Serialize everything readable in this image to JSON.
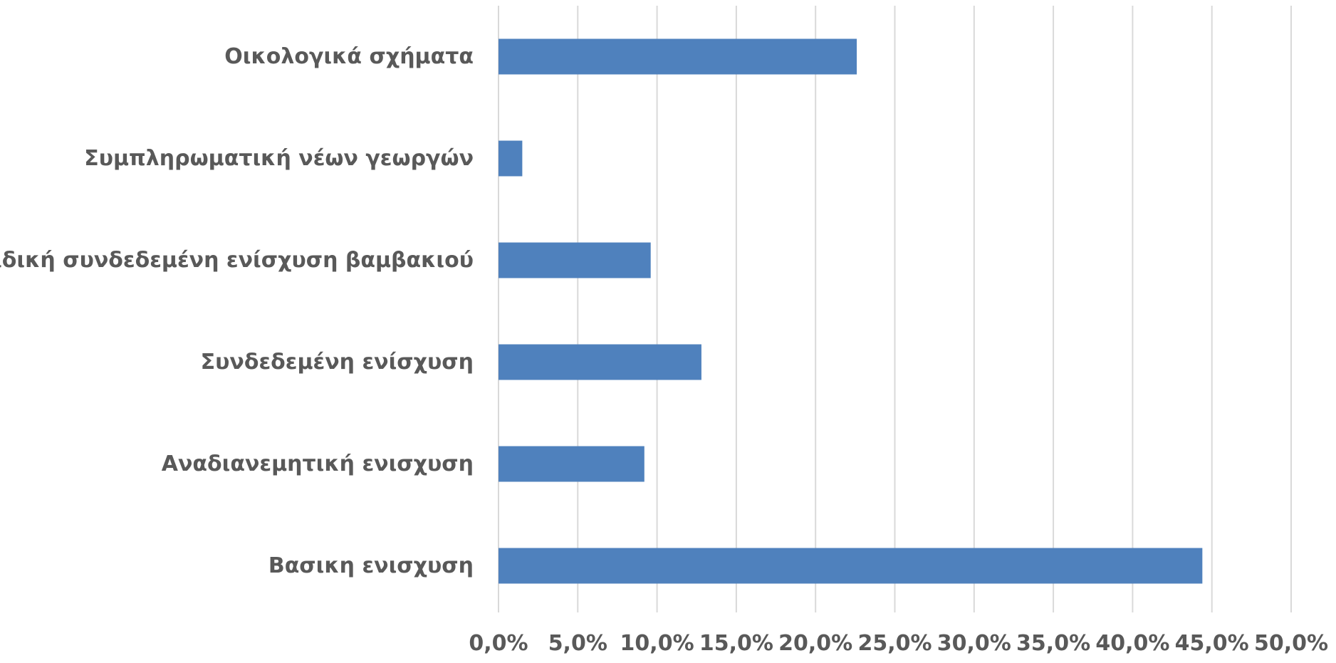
{
  "chart_data": {
    "type": "bar",
    "orientation": "horizontal",
    "categories": [
      "Βασικη ενισχυση",
      "Αναδιανεμητική ενισχυση",
      "Συνδεδεμένη ενίσχυση",
      "Ειδική συνδεδεμένη ενίσχυση βαμβακιού",
      "Συμπληρωματική νέων γεωργών",
      "Οικολογικά σχήματα"
    ],
    "values": [
      44.4,
      9.2,
      12.8,
      9.6,
      1.5,
      22.6
    ],
    "xlim": [
      0,
      50
    ],
    "x_tick_step": 5,
    "x_tick_labels": [
      "0,0%",
      "5,0%",
      "10,0%",
      "15,0%",
      "20,0%",
      "25,0%",
      "30,0%",
      "35,0%",
      "40,0%",
      "45,0%",
      "50,0%"
    ],
    "grid": true,
    "legend": false,
    "bar_color": "#4f81bd",
    "grid_color": "#d9d9d9",
    "label_color": "#595959"
  }
}
